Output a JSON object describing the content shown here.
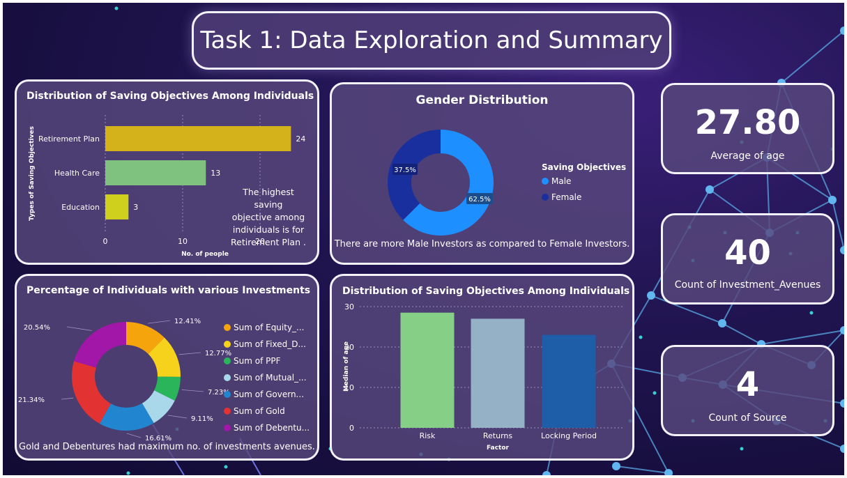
{
  "header": {
    "title": "Task 1: Data Exploration and Summary"
  },
  "kpis": [
    {
      "value": "27.80",
      "label": "Average of age"
    },
    {
      "value": "40",
      "label": "Count of Investment_Avenues"
    },
    {
      "value": "4",
      "label": "Count of Source"
    }
  ],
  "colors": {
    "background": "#1c1248",
    "card": "#58487d",
    "border": "#f4f2fb"
  },
  "chart_data": [
    {
      "type": "bar",
      "orientation": "horizontal",
      "title": "Distribution of Saving Objectives Among Individuals",
      "categories": [
        "Retirement Plan",
        "Health Care",
        "Education"
      ],
      "values": [
        24,
        13,
        3
      ],
      "data_labels": [
        "24",
        "13",
        "3"
      ],
      "colors": [
        "#d4b21b",
        "#7fc27f",
        "#cfcf1e"
      ],
      "xlabel": "No. of people",
      "ylabel": "Types of Saving Objectives",
      "xlim": [
        0,
        24
      ],
      "xticks": [
        "0",
        "10",
        "20"
      ],
      "grid": true,
      "note": [
        "The highest saving",
        "objective among",
        "individuals is for",
        "Retirement Plan ."
      ]
    },
    {
      "type": "pie",
      "style": "donut",
      "title": "Gender Distribution",
      "legend_title": "Saving Objectives",
      "legend_position": "right",
      "slices": [
        {
          "label": "Male",
          "value": 62.5,
          "text": "62.5%",
          "color": "#1e8fff"
        },
        {
          "label": "Female",
          "value": 37.5,
          "text": "37.5%",
          "color": "#1a2f9e"
        }
      ],
      "note": "There are more Male Investors as compared to Female Investors."
    },
    {
      "type": "pie",
      "style": "donut",
      "title": "Percentage of Individuals with various Investments",
      "legend_position": "right",
      "slices": [
        {
          "label": "Sum of Equity_...",
          "value": 12.41,
          "text": "12.41%",
          "color": "#f5a40c"
        },
        {
          "label": "Sum of Fixed_D...",
          "value": 12.77,
          "text": "12.77%",
          "color": "#f7d21c"
        },
        {
          "label": "Sum of PPF",
          "value": 7.23,
          "text": "7.23%",
          "color": "#2ab55a"
        },
        {
          "label": "Sum of Mutual_...",
          "value": 9.11,
          "text": "9.11%",
          "color": "#a9d8ea"
        },
        {
          "label": "Sum of Govern...",
          "value": 16.61,
          "text": "16.61%",
          "color": "#2186cf"
        },
        {
          "label": "Sum of Gold",
          "value": 21.34,
          "text": "21.34%",
          "color": "#e23232"
        },
        {
          "label": "Sum of Debentu...",
          "value": 20.54,
          "text": "20.54%",
          "color": "#a216a8"
        }
      ],
      "note": "Gold and Debentures had maximum no. of investments avenues."
    },
    {
      "type": "bar",
      "orientation": "vertical",
      "title": "Distribution of Saving Objectives Among Individuals",
      "categories": [
        "Risk",
        "Returns",
        "Locking Period"
      ],
      "values": [
        28.5,
        27,
        23
      ],
      "colors": [
        "#86cf86",
        "#94b1c6",
        "#1e5ea8"
      ],
      "xlabel": "Factor",
      "ylabel": "Median of age",
      "ylim": [
        0,
        30
      ],
      "yticks": [
        "0",
        "10",
        "20",
        "30"
      ],
      "grid": true
    }
  ]
}
